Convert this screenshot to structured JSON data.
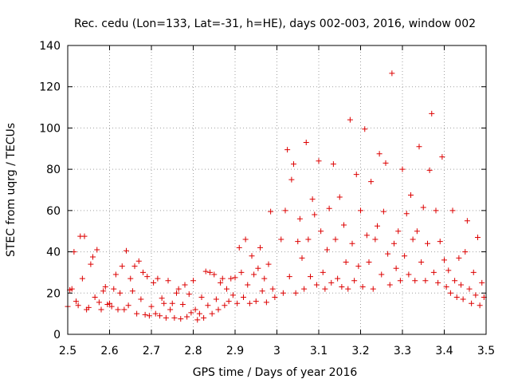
{
  "chart_data": {
    "type": "scatter",
    "title": "Rec. cedu (Lon=133, Lat=-31, h=HE), days 002-003, 2016, window 002",
    "xlabel": "GPS time / Days of year 2016",
    "ylabel": "STEC from uqrg / TECUs",
    "xlim": [
      2.5,
      3.5
    ],
    "ylim": [
      0,
      140
    ],
    "xticks": [
      2.5,
      2.6,
      2.7,
      2.8,
      2.9,
      3.0,
      3.1,
      3.2,
      3.3,
      3.4,
      3.5
    ],
    "xtick_labels": [
      "2.5",
      "2.6",
      "2.7",
      "2.8",
      "2.9",
      "3",
      "3.1",
      "3.2",
      "3.3",
      "3.4",
      "3.5"
    ],
    "yticks": [
      0,
      20,
      40,
      60,
      80,
      100,
      120,
      140
    ],
    "ytick_labels": [
      "0",
      "20",
      "40",
      "60",
      "80",
      "100",
      "120",
      "140"
    ],
    "grid": true,
    "marker": "+",
    "color": "#dd0000",
    "series": [
      {
        "name": "STEC",
        "points": [
          [
            2.5,
            13.5
          ],
          [
            2.505,
            21.5
          ],
          [
            2.51,
            22.0
          ],
          [
            2.515,
            40.0
          ],
          [
            2.52,
            16.0
          ],
          [
            2.525,
            14.0
          ],
          [
            2.53,
            47.5
          ],
          [
            2.535,
            27.0
          ],
          [
            2.54,
            47.5
          ],
          [
            2.545,
            12.0
          ],
          [
            2.55,
            13.0
          ],
          [
            2.555,
            34.0
          ],
          [
            2.56,
            37.5
          ],
          [
            2.565,
            18.0
          ],
          [
            2.57,
            41.0
          ],
          [
            2.575,
            15.5
          ],
          [
            2.58,
            12.0
          ],
          [
            2.585,
            21.0
          ],
          [
            2.59,
            23.0
          ],
          [
            2.595,
            14.5
          ],
          [
            2.6,
            15.0
          ],
          [
            2.605,
            13.5
          ],
          [
            2.61,
            22.0
          ],
          [
            2.615,
            29.0
          ],
          [
            2.62,
            12.0
          ],
          [
            2.625,
            20.0
          ],
          [
            2.63,
            33.0
          ],
          [
            2.635,
            12.0
          ],
          [
            2.64,
            40.5
          ],
          [
            2.645,
            14.0
          ],
          [
            2.65,
            27.0
          ],
          [
            2.655,
            21.0
          ],
          [
            2.66,
            33.0
          ],
          [
            2.665,
            10.0
          ],
          [
            2.67,
            35.5
          ],
          [
            2.675,
            17.0
          ],
          [
            2.68,
            30.0
          ],
          [
            2.685,
            9.5
          ],
          [
            2.69,
            28.0
          ],
          [
            2.695,
            9.0
          ],
          [
            2.7,
            13.5
          ],
          [
            2.705,
            25.0
          ],
          [
            2.71,
            10.0
          ],
          [
            2.715,
            27.0
          ],
          [
            2.72,
            9.0
          ],
          [
            2.725,
            17.5
          ],
          [
            2.73,
            15.0
          ],
          [
            2.735,
            8.0
          ],
          [
            2.74,
            26.0
          ],
          [
            2.745,
            12.0
          ],
          [
            2.75,
            15.0
          ],
          [
            2.755,
            8.0
          ],
          [
            2.76,
            20.0
          ],
          [
            2.765,
            22.0
          ],
          [
            2.77,
            7.5
          ],
          [
            2.775,
            14.5
          ],
          [
            2.78,
            24.0
          ],
          [
            2.785,
            8.5
          ],
          [
            2.79,
            19.5
          ],
          [
            2.795,
            10.5
          ],
          [
            2.8,
            26.0
          ],
          [
            2.805,
            12.0
          ],
          [
            2.81,
            7.0
          ],
          [
            2.815,
            10.0
          ],
          [
            2.82,
            18.0
          ],
          [
            2.825,
            8.0
          ],
          [
            2.83,
            30.5
          ],
          [
            2.835,
            14.0
          ],
          [
            2.84,
            30.0
          ],
          [
            2.845,
            10.0
          ],
          [
            2.85,
            29.0
          ],
          [
            2.855,
            17.0
          ],
          [
            2.86,
            12.0
          ],
          [
            2.865,
            25.0
          ],
          [
            2.87,
            27.0
          ],
          [
            2.875,
            14.0
          ],
          [
            2.88,
            22.0
          ],
          [
            2.885,
            16.0
          ],
          [
            2.89,
            27.0
          ],
          [
            2.895,
            19.0
          ],
          [
            2.9,
            27.5
          ],
          [
            2.905,
            15.0
          ],
          [
            2.91,
            42.0
          ],
          [
            2.915,
            30.0
          ],
          [
            2.92,
            18.0
          ],
          [
            2.925,
            46.0
          ],
          [
            2.93,
            24.0
          ],
          [
            2.935,
            15.0
          ],
          [
            2.94,
            38.0
          ],
          [
            2.945,
            29.0
          ],
          [
            2.95,
            16.0
          ],
          [
            2.955,
            32.0
          ],
          [
            2.96,
            42.0
          ],
          [
            2.965,
            21.0
          ],
          [
            2.97,
            27.0
          ],
          [
            2.975,
            15.5
          ],
          [
            2.98,
            34.0
          ],
          [
            2.985,
            59.5
          ],
          [
            2.99,
            22.0
          ],
          [
            2.995,
            18.0
          ],
          [
            3.01,
            46.0
          ],
          [
            3.015,
            20.0
          ],
          [
            3.02,
            60.0
          ],
          [
            3.025,
            89.5
          ],
          [
            3.03,
            28.0
          ],
          [
            3.035,
            75.0
          ],
          [
            3.04,
            82.5
          ],
          [
            3.045,
            20.0
          ],
          [
            3.05,
            45.0
          ],
          [
            3.055,
            56.0
          ],
          [
            3.06,
            37.0
          ],
          [
            3.065,
            22.0
          ],
          [
            3.07,
            93.0
          ],
          [
            3.075,
            46.0
          ],
          [
            3.08,
            28.0
          ],
          [
            3.085,
            65.5
          ],
          [
            3.09,
            58.0
          ],
          [
            3.095,
            24.0
          ],
          [
            3.1,
            84.0
          ],
          [
            3.105,
            50.0
          ],
          [
            3.11,
            30.0
          ],
          [
            3.115,
            22.0
          ],
          [
            3.12,
            41.0
          ],
          [
            3.125,
            61.0
          ],
          [
            3.13,
            25.0
          ],
          [
            3.135,
            82.5
          ],
          [
            3.14,
            46.0
          ],
          [
            3.145,
            27.0
          ],
          [
            3.15,
            66.5
          ],
          [
            3.155,
            23.0
          ],
          [
            3.16,
            53.0
          ],
          [
            3.165,
            35.0
          ],
          [
            3.17,
            22.0
          ],
          [
            3.175,
            104.0
          ],
          [
            3.18,
            44.0
          ],
          [
            3.185,
            26.0
          ],
          [
            3.19,
            77.5
          ],
          [
            3.195,
            33.0
          ],
          [
            3.2,
            60.0
          ],
          [
            3.205,
            23.0
          ],
          [
            3.21,
            99.5
          ],
          [
            3.215,
            48.0
          ],
          [
            3.22,
            35.0
          ],
          [
            3.225,
            74.0
          ],
          [
            3.23,
            22.0
          ],
          [
            3.235,
            46.0
          ],
          [
            3.24,
            52.5
          ],
          [
            3.245,
            87.5
          ],
          [
            3.25,
            29.0
          ],
          [
            3.255,
            59.5
          ],
          [
            3.26,
            83.0
          ],
          [
            3.265,
            39.0
          ],
          [
            3.27,
            24.0
          ],
          [
            3.275,
            126.5
          ],
          [
            3.28,
            44.0
          ],
          [
            3.285,
            32.0
          ],
          [
            3.29,
            50.0
          ],
          [
            3.295,
            26.0
          ],
          [
            3.3,
            80.0
          ],
          [
            3.305,
            38.0
          ],
          [
            3.31,
            58.5
          ],
          [
            3.315,
            29.0
          ],
          [
            3.32,
            67.5
          ],
          [
            3.325,
            46.0
          ],
          [
            3.33,
            26.0
          ],
          [
            3.335,
            50.0
          ],
          [
            3.34,
            91.0
          ],
          [
            3.345,
            35.0
          ],
          [
            3.35,
            61.5
          ],
          [
            3.355,
            26.0
          ],
          [
            3.36,
            44.0
          ],
          [
            3.365,
            79.5
          ],
          [
            3.37,
            107.0
          ],
          [
            3.375,
            30.0
          ],
          [
            3.38,
            60.0
          ],
          [
            3.385,
            25.0
          ],
          [
            3.39,
            45.0
          ],
          [
            3.395,
            86.0
          ],
          [
            3.4,
            36.0
          ],
          [
            3.405,
            23.0
          ],
          [
            3.41,
            31.0
          ],
          [
            3.415,
            20.0
          ],
          [
            3.42,
            60.0
          ],
          [
            3.425,
            26.0
          ],
          [
            3.43,
            18.0
          ],
          [
            3.435,
            37.0
          ],
          [
            3.44,
            24.0
          ],
          [
            3.445,
            17.0
          ],
          [
            3.45,
            40.0
          ],
          [
            3.455,
            55.0
          ],
          [
            3.46,
            22.0
          ],
          [
            3.465,
            15.0
          ],
          [
            3.47,
            30.0
          ],
          [
            3.475,
            19.0
          ],
          [
            3.48,
            47.0
          ],
          [
            3.485,
            14.0
          ],
          [
            3.49,
            25.0
          ],
          [
            3.495,
            18.0
          ]
        ]
      }
    ]
  }
}
